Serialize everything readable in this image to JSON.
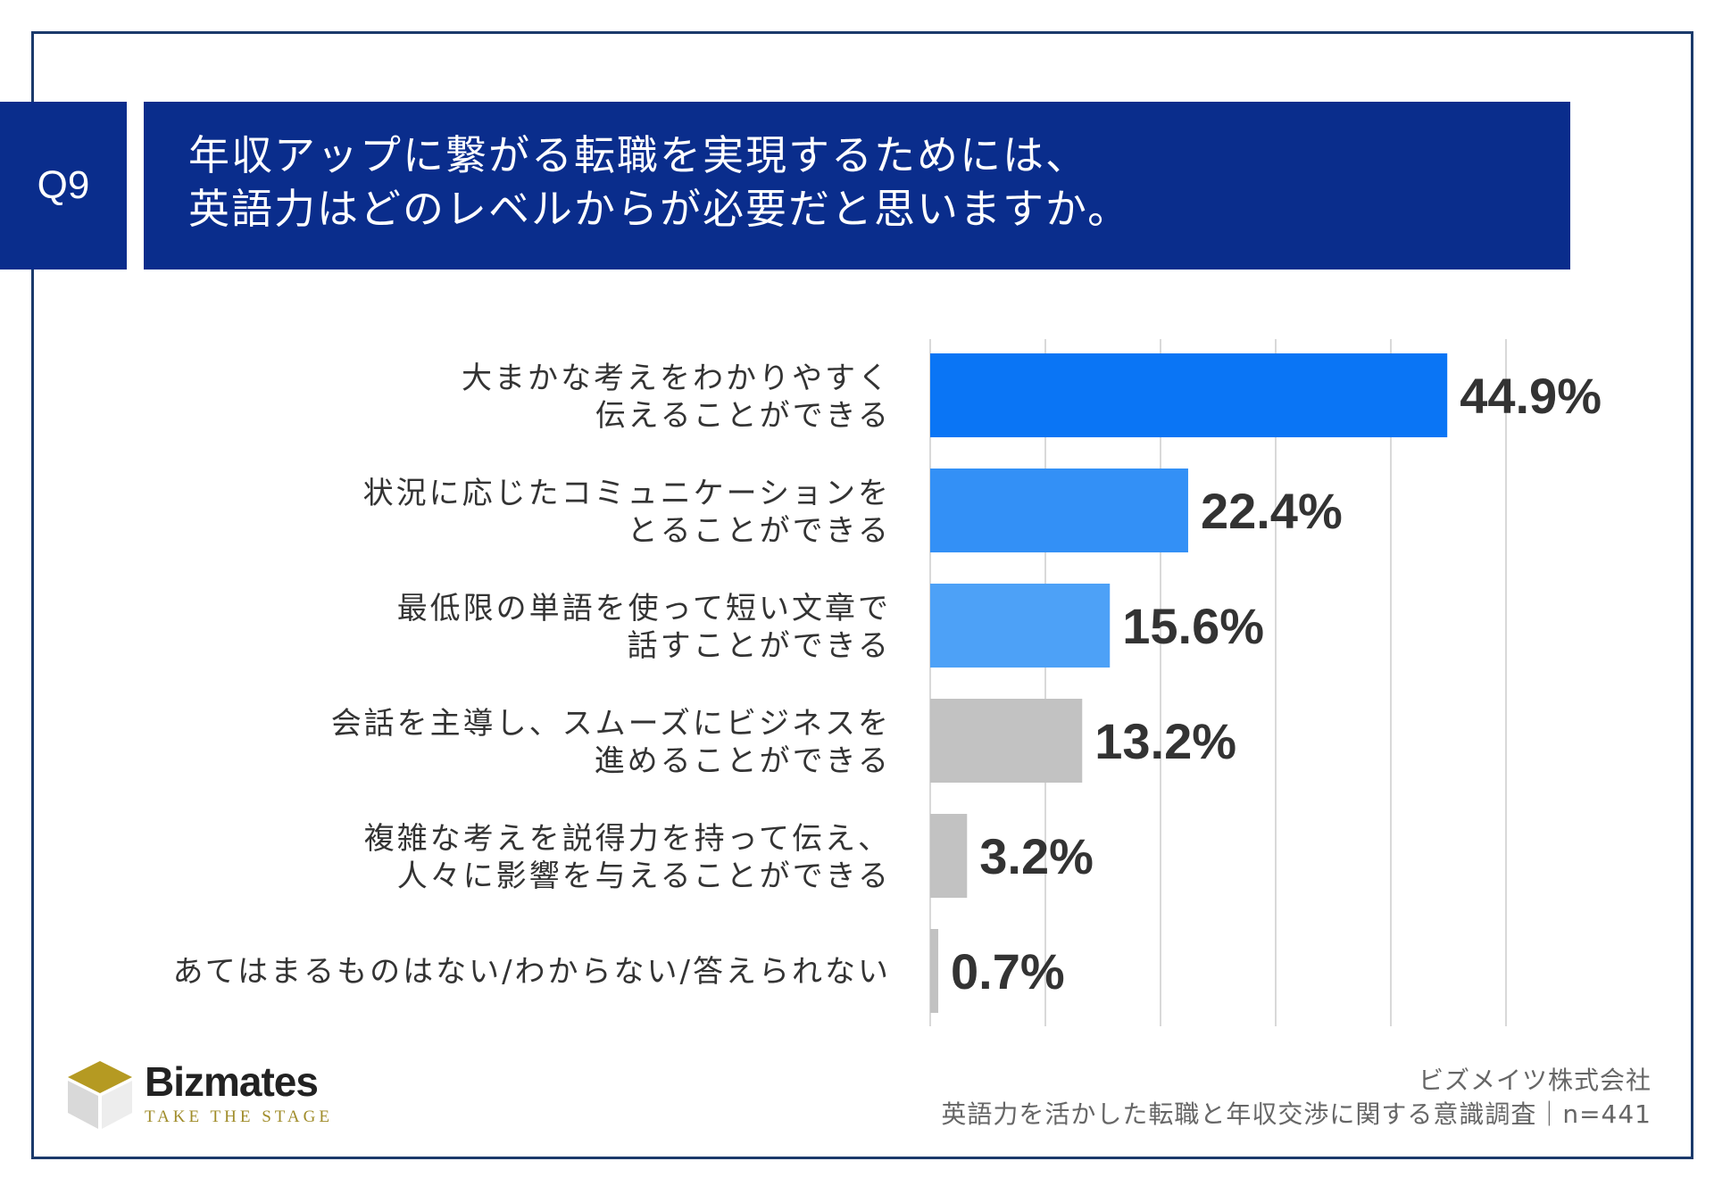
{
  "question": {
    "number": "Q9",
    "line1": "年収アップに繋がる転職を実現するためには、",
    "line2": "英語力はどのレベルからが必要だと思いますか。"
  },
  "chart_data": {
    "type": "bar",
    "orientation": "horizontal",
    "categories": [
      [
        "大まかな考えをわかりやすく",
        "伝えることができる"
      ],
      [
        "状況に応じたコミュニケーションを",
        "とることができる"
      ],
      [
        "最低限の単語を使って短い文章で",
        "話すことができる"
      ],
      [
        "会話を主導し、スムーズにビジネスを",
        "進めることができる"
      ],
      [
        "複雑な考えを説得力を持って伝え、",
        "人々に影響を与えることができる"
      ],
      [
        "あてはまるものはない/わからない/答えられない"
      ]
    ],
    "values": [
      44.9,
      22.4,
      15.6,
      13.2,
      3.2,
      0.7
    ],
    "value_labels": [
      "44.9%",
      "22.4%",
      "15.6%",
      "13.2%",
      "3.2%",
      "0.7%"
    ],
    "colors": [
      "#0a75f5",
      "#3390f6",
      "#4da1f7",
      "#c2c2c2",
      "#c2c2c2",
      "#c2c2c2"
    ],
    "xlim": [
      0,
      50
    ],
    "grid": true,
    "legend": "none"
  },
  "logo": {
    "name": "Bizmates",
    "tagline": "TAKE THE STAGE"
  },
  "footer": {
    "company": "ビズメイツ株式会社",
    "survey": "英語力を活かした転職と年収交渉に関する意識調査｜n=441"
  },
  "colors": {
    "header_bg": "#0a2d8c",
    "frame": "#1b3a6b",
    "logo_gold": "#a08c2a"
  }
}
